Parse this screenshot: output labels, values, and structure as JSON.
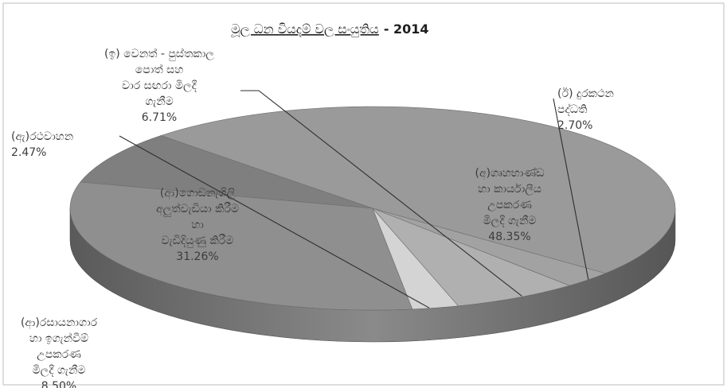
{
  "chart_data": {
    "type": "pie",
    "title": "මූල ධන වියදම් වල සංයුතිය",
    "title_year": "- 2014",
    "style": "3d-exploded-pie",
    "unit": "%",
    "slices": [
      {
        "label": "(ආ)ගොඩනැගිලි අලුත්වැඩියා කිරීම හා වැඩිදියුණු කිරීම",
        "lines": [
          "(ආ)ගොඩනැගිලි",
          "අලුත්වැඩියා කිරීම",
          "හා",
          "වැඩිදියුණු කිරීම"
        ],
        "value": 31.26,
        "pct_label": "31.26%",
        "color": "#8f8f8f"
      },
      {
        "label": "(ඇ)රථවාහන",
        "lines": [
          "(ඇ)රථවාහන"
        ],
        "value": 2.47,
        "pct_label": "2.47%",
        "color": "#d4d4d4"
      },
      {
        "label": "(ඉ) වෙනත් - පුස්තකාල පොත් සහ වාර සඟරා මිලදී ගැනීම",
        "lines": [
          "(ඉ) වෙනත් - පුස්තකාල",
          "පොත් සහ",
          "වාර සඟරා මිලදී",
          "ගැනීම"
        ],
        "value": 6.71,
        "pct_label": "6.71%",
        "color": "#b0b0b0"
      },
      {
        "label": "(ඊ) දුරකථන පද්ධති",
        "lines": [
          "(ඊ) දුරකථන",
          "පද්ධති"
        ],
        "value": 2.7,
        "pct_label": "2.70%",
        "color": "#a2a2a2"
      },
      {
        "label": "(අ)ගෘහභාණ්ඩ හා කාර්යාලීය උපකරණ මිලදී ගැනීම",
        "lines": [
          "(අ)ගෘහභාණ්ඩ",
          "හා කාර්යාලීය",
          "උපකරණ",
          "මිලදී ගැනීම"
        ],
        "value": 48.35,
        "pct_label": "48.35%",
        "color": "#9a9a9a"
      },
      {
        "label": "(ආ)රසායනාගාර හා ඉගැන්වීම් උපකරණ මිලදී ගැනීම",
        "lines": [
          "(ආ)රසායනාගාර",
          "හා ඉගැන්වීම්",
          "උපකරණ",
          "මිලදී ගැනීම"
        ],
        "value": 8.5,
        "pct_label": "8.50%",
        "color": "#7f7f7f"
      }
    ]
  }
}
